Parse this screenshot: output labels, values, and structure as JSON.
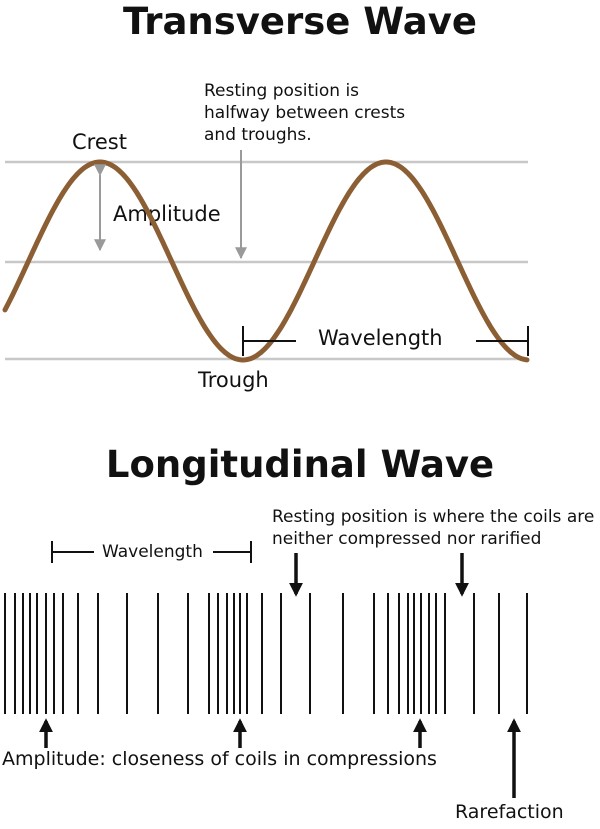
{
  "transverse": {
    "title": "Transverse Wave",
    "resting_note_lines": [
      "Resting position is",
      "halfway between crests",
      "and troughs."
    ],
    "crest_label": "Crest",
    "amplitude_label": "Amplitude",
    "wavelength_label": "Wavelength",
    "trough_label": "Trough",
    "colors": {
      "wave": "#8b5e34",
      "guide_line": "#c8c8c8",
      "arrow": "#9a9a9a"
    }
  },
  "longitudinal": {
    "title": "Longitudinal Wave",
    "resting_note_lines": [
      "Resting position is where the coils are",
      "neither compressed nor rarified"
    ],
    "wavelength_label": "Wavelength",
    "amplitude_caption": "Amplitude: closeness of coils in compressions",
    "rarefaction_label": "Rarefaction",
    "colors": {
      "coil": "#111111"
    }
  }
}
